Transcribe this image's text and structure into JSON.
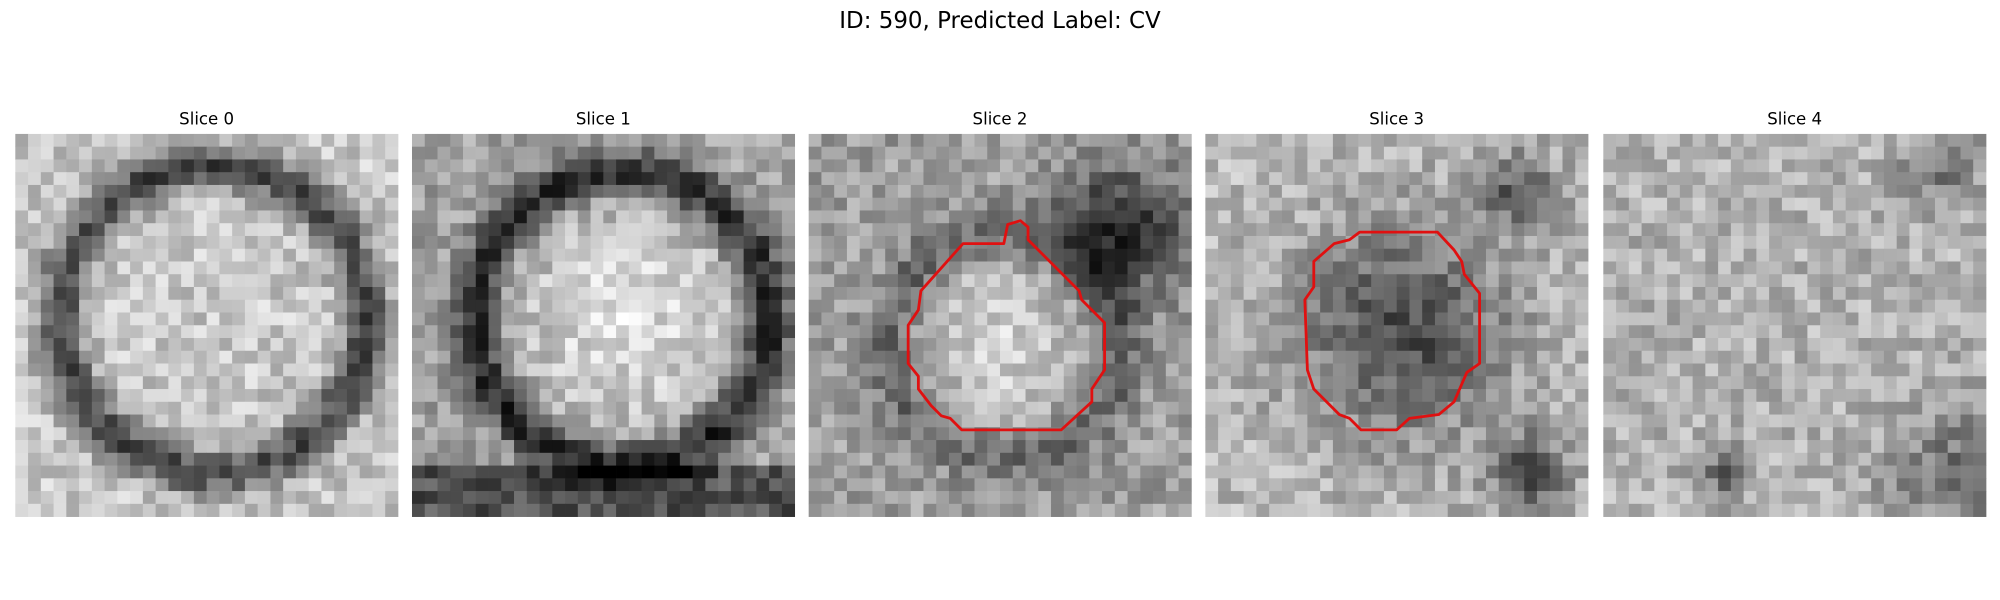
{
  "title": "ID: 590, Predicted Label: CV",
  "panels": [
    {
      "title": "Slice 0"
    },
    {
      "title": "Slice 1"
    },
    {
      "title": "Slice 2"
    },
    {
      "title": "Slice 3"
    },
    {
      "title": "Slice 4"
    }
  ]
}
